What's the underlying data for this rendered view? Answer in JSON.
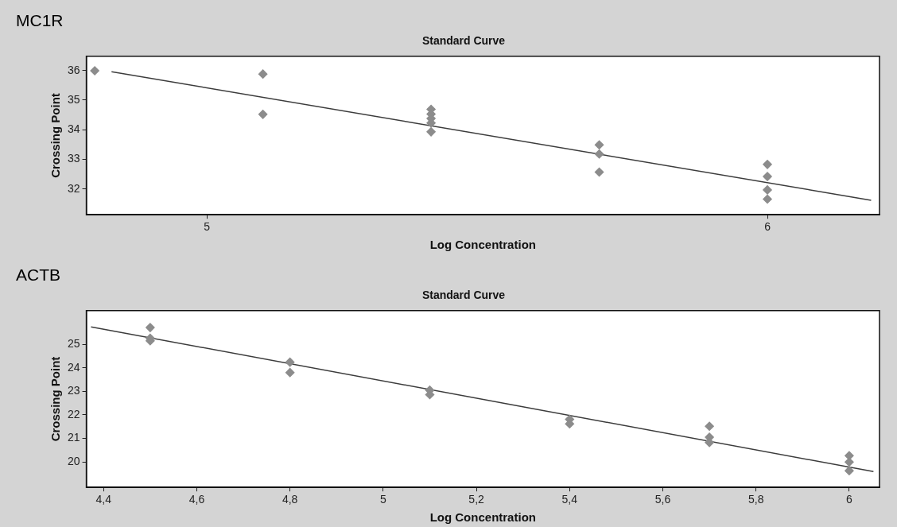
{
  "chart_data": [
    {
      "type": "scatter",
      "title": "Standard Curve",
      "xlabel": "Log Concentration",
      "ylabel": "Crossing Point",
      "annotations": [
        "MC1R"
      ],
      "xlim": [
        4.785,
        6.2
      ],
      "ylim": [
        31.13,
        36.48
      ],
      "xticks": [
        {
          "value": 5,
          "label": "5"
        },
        {
          "value": 6,
          "label": "6"
        }
      ],
      "yticks": [
        32,
        33,
        34,
        35,
        36
      ],
      "grid": false,
      "series": [
        {
          "type": "scatter",
          "marker": "diamond",
          "color": "#8c8c8c",
          "x": [
            4.8,
            5.1,
            5.1,
            5.4,
            5.4,
            5.4,
            5.4,
            5.4,
            5.7,
            5.7,
            5.7,
            6.0,
            6.0,
            6.0,
            6.0
          ],
          "values": [
            35.99,
            35.88,
            34.52,
            34.69,
            34.53,
            34.38,
            34.23,
            33.93,
            33.49,
            33.18,
            32.57,
            32.83,
            32.42,
            31.97,
            31.66
          ]
        },
        {
          "type": "line",
          "marker": "none",
          "color": "#3c3c3c",
          "x": [
            4.83,
            6.185
          ],
          "values": [
            35.96,
            31.62
          ]
        }
      ]
    },
    {
      "type": "scatter",
      "title": "Standard Curve",
      "xlabel": "Log Concentration",
      "ylabel": "Crossing Point",
      "annotations": [
        "ACTB"
      ],
      "xlim": [
        4.363,
        6.065
      ],
      "ylim": [
        18.92,
        26.43
      ],
      "xticks": [
        {
          "value": 4.4,
          "label": "4,4"
        },
        {
          "value": 4.6,
          "label": "4,6"
        },
        {
          "value": 4.8,
          "label": "4,8"
        },
        {
          "value": 5,
          "label": "5"
        },
        {
          "value": 5.2,
          "label": "5,2"
        },
        {
          "value": 5.4,
          "label": "5,4"
        },
        {
          "value": 5.6,
          "label": "5,6"
        },
        {
          "value": 5.8,
          "label": "5,8"
        },
        {
          "value": 6,
          "label": "6"
        }
      ],
      "yticks": [
        20,
        21,
        22,
        23,
        24,
        25
      ],
      "grid": false,
      "series": [
        {
          "type": "scatter",
          "marker": "diamond",
          "color": "#8c8c8c",
          "x": [
            4.5,
            4.5,
            4.5,
            4.8,
            4.8,
            5.1,
            5.1,
            5.4,
            5.4,
            5.7,
            5.7,
            5.7,
            6.0,
            6.0,
            6.0
          ],
          "values": [
            25.71,
            25.26,
            25.15,
            24.24,
            23.8,
            23.05,
            22.86,
            21.81,
            21.62,
            21.52,
            21.05,
            20.83,
            20.27,
            20.0,
            19.63
          ]
        },
        {
          "type": "line",
          "marker": "none",
          "color": "#3c3c3c",
          "x": [
            4.373,
            6.052
          ],
          "values": [
            25.74,
            19.59
          ]
        }
      ]
    }
  ]
}
